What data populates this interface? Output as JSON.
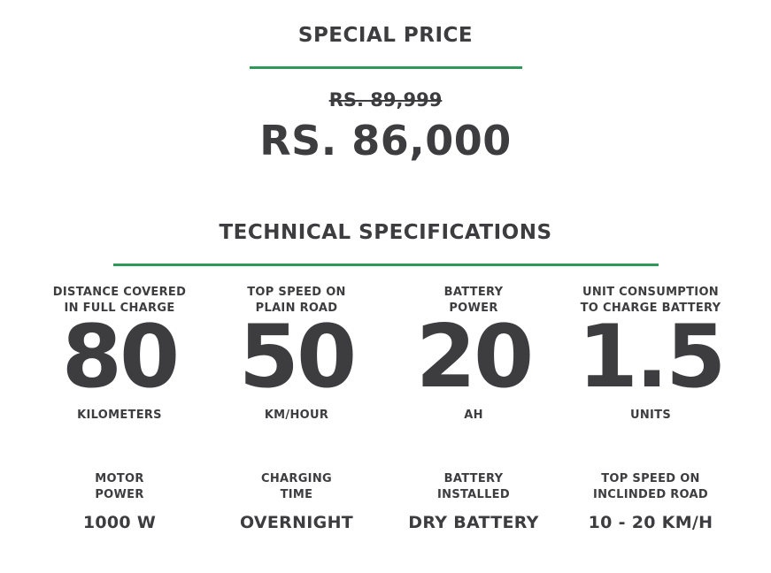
{
  "price": {
    "title": "SPECIAL PRICE",
    "old_price": "RS. 89,999",
    "new_price": "RS. 86,000"
  },
  "specs": {
    "title": "TECHNICAL SPECIFICATIONS",
    "primary": [
      {
        "label_line1": "DISTANCE COVERED",
        "label_line2": "IN FULL CHARGE",
        "value": "80",
        "unit": "KILOMETERS"
      },
      {
        "label_line1": "TOP SPEED ON",
        "label_line2": "PLAIN ROAD",
        "value": "50",
        "unit": "KM/HOUR"
      },
      {
        "label_line1": "BATTERY",
        "label_line2": "POWER",
        "value": "20",
        "unit": "AH"
      },
      {
        "label_line1": "UNIT CONSUMPTION",
        "label_line2": "TO CHARGE BATTERY",
        "value": "1.5",
        "unit": "UNITS"
      }
    ],
    "secondary": [
      {
        "label_line1": "MOTOR",
        "label_line2": "POWER",
        "value": "1000 W"
      },
      {
        "label_line1": "CHARGING",
        "label_line2": "TIME",
        "value": "OVERNIGHT"
      },
      {
        "label_line1": "BATTERY",
        "label_line2": "INSTALLED",
        "value": "DRY BATTERY"
      },
      {
        "label_line1": "TOP SPEED ON",
        "label_line2": "INCLINDED ROAD",
        "value": "10 - 20 KM/H"
      }
    ]
  },
  "colors": {
    "accent": "#2e9a5a",
    "text": "#3d3d3f"
  }
}
